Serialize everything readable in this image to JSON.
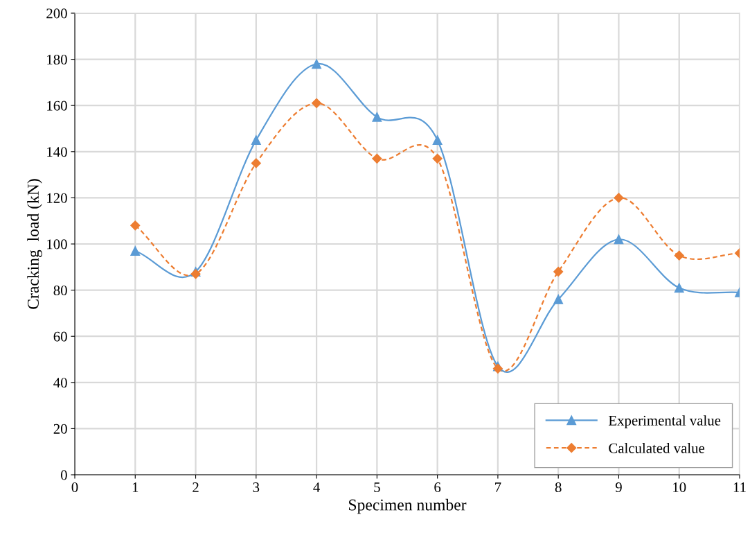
{
  "chart_data": {
    "type": "line",
    "xlabel": "Specimen number",
    "ylabel": "Cracking  load (kN)",
    "x": [
      1,
      2,
      3,
      4,
      5,
      6,
      7,
      8,
      9,
      10,
      11
    ],
    "xlim": [
      0,
      11
    ],
    "xticks": [
      0,
      1,
      2,
      3,
      4,
      5,
      6,
      7,
      8,
      9,
      10,
      11
    ],
    "ylim": [
      0,
      200
    ],
    "yticks": [
      0,
      20,
      40,
      60,
      80,
      100,
      120,
      140,
      160,
      180,
      200
    ],
    "grid": true,
    "legend": "bottom right",
    "series": [
      {
        "name": "Experimental value",
        "color": "#5b9bd5",
        "marker": "triangle",
        "line_style": "solid",
        "values": [
          97,
          88,
          145,
          178,
          155,
          145,
          47,
          76,
          102,
          81,
          79
        ]
      },
      {
        "name": "Calculated value",
        "color": "#ed7d31",
        "marker": "diamond",
        "line_style": "dashed",
        "values": [
          108,
          87,
          135,
          161,
          137,
          137,
          46,
          88,
          120,
          95,
          96
        ]
      }
    ]
  }
}
